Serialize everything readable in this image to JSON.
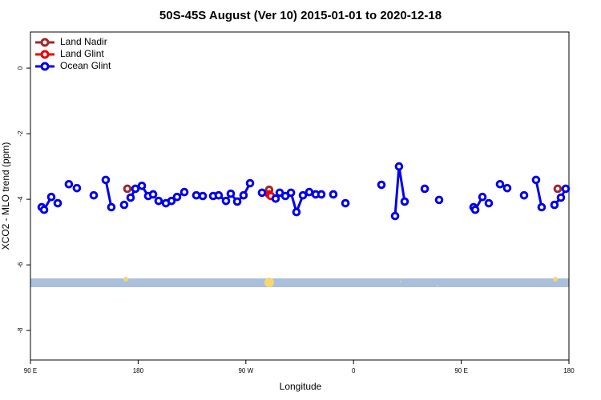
{
  "chart_data": {
    "type": "line",
    "title": "50S-45S August (Ver 10)   2015-01-01 to 2020-12-18",
    "x_label": "Longitude",
    "y_label": "XCO2 - MLO trend (ppm)",
    "xlim": [
      90,
      540
    ],
    "xticks": [
      {
        "value": 90,
        "label": "90 E"
      },
      {
        "value": 180,
        "label": "180"
      },
      {
        "value": 270,
        "label": "90 W"
      },
      {
        "value": 360,
        "label": "0"
      },
      {
        "value": 450,
        "label": "90 E"
      },
      {
        "value": 540,
        "label": "180"
      }
    ],
    "ylim": [
      -8.9,
      1.1
    ],
    "yticks": [
      0,
      -2,
      -4,
      -6,
      -8
    ],
    "legend": "upper left",
    "series": [
      {
        "name": "Land Nadir",
        "color": "#a0282a",
        "x": [
          171.0,
          null,
          289.5,
          null,
          530.6
        ],
        "values": [
          -3.68,
          null,
          -3.71,
          null,
          -3.68
        ]
      },
      {
        "name": "Land Glint",
        "color": "#ee0000",
        "x": [
          289.5,
          290.9
        ],
        "values": [
          -3.85,
          -3.9
        ]
      },
      {
        "name": "Ocean Glint",
        "color": "#0000ee",
        "x": [
          99.4,
          101.4,
          107.4,
          null,
          112.8,
          null,
          122.1,
          null,
          128.8,
          null,
          142.9,
          null,
          152.9,
          157.6,
          null,
          168.3,
          null,
          173.7,
          177.7,
          null,
          183.1,
          188.4,
          192.5,
          null,
          197.1,
          203.2,
          207.9,
          212.5,
          218.6,
          null,
          228.6,
          234.0,
          null,
          242.7,
          247.3,
          253.4,
          257.4,
          262.8,
          268.1,
          273.5,
          null,
          283.5,
          null,
          294.9,
          298.3,
          303.0,
          307.7,
          312.3,
          317.7,
          323.0,
          328.4,
          333.1,
          null,
          343.1,
          null,
          353.2,
          null,
          383.3,
          null,
          394.7,
          398.0,
          402.7,
          null,
          419.5,
          null,
          431.5,
          null,
          460.3,
          461.7,
          467.7,
          null,
          473.0,
          null,
          482.4,
          null,
          488.4,
          null,
          502.5,
          null,
          512.5,
          517.2,
          null,
          527.9,
          533.3,
          537.3
        ],
        "values": [
          -4.24,
          -4.32,
          -3.93,
          null,
          -4.12,
          null,
          -3.54,
          null,
          -3.66,
          null,
          -3.88,
          null,
          -3.41,
          -4.24,
          null,
          -4.17,
          null,
          -3.95,
          -3.68,
          null,
          -3.59,
          -3.9,
          -3.85,
          null,
          -4.05,
          -4.12,
          -4.05,
          -3.93,
          -3.78,
          null,
          -3.88,
          -3.9,
          null,
          -3.9,
          -3.88,
          -4.05,
          -3.83,
          -4.07,
          -3.88,
          -3.51,
          null,
          -3.8,
          null,
          -3.98,
          -3.8,
          -3.9,
          -3.8,
          -4.39,
          -3.88,
          -3.78,
          -3.85,
          -3.85,
          null,
          -3.85,
          null,
          -4.12,
          null,
          -3.56,
          null,
          -4.51,
          -3.0,
          -4.07,
          null,
          -3.68,
          null,
          -4.02,
          null,
          -4.24,
          -4.32,
          -3.93,
          null,
          -4.12,
          null,
          -3.54,
          null,
          -3.66,
          null,
          -3.88,
          null,
          -3.41,
          -4.24,
          null,
          -4.17,
          -3.95,
          -3.68
        ]
      }
    ]
  }
}
